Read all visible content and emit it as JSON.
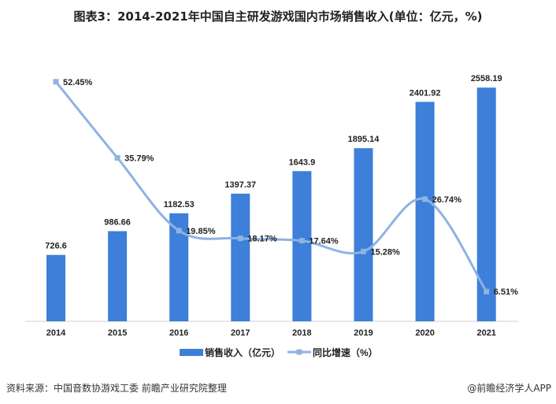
{
  "chart_data": {
    "type": "bar+line",
    "title": "图表3：2014-2021年中国自主研发游戏国内市场销售收入(单位：亿元，%)",
    "categories": [
      "2014",
      "2015",
      "2016",
      "2017",
      "2018",
      "2019",
      "2020",
      "2021"
    ],
    "series": [
      {
        "name": "销售收入（亿元）",
        "type": "bar",
        "axis": "left",
        "values": [
          726.6,
          986.66,
          1182.53,
          1397.37,
          1643.9,
          1895.14,
          2401.92,
          2558.19
        ],
        "labels": [
          "726.6",
          "986.66",
          "1182.53",
          "1397.37",
          "1643.9",
          "1895.14",
          "2401.92",
          "2558.19"
        ],
        "color": "#3d7fd9"
      },
      {
        "name": "同比增速（%）",
        "type": "line",
        "smooth": true,
        "axis": "right",
        "values": [
          52.45,
          35.79,
          19.85,
          18.17,
          17.64,
          15.28,
          26.74,
          6.51
        ],
        "labels": [
          "52.45%",
          "35.79%",
          "19.85%",
          "18.17%",
          "17.64%",
          "15.28%",
          "26.74%",
          "6.51%"
        ],
        "color": "#8db3e2"
      }
    ],
    "ylim": [
      0,
      3000
    ],
    "y2lim": [
      0,
      60
    ],
    "grid": false,
    "legend": "bottom"
  },
  "footer": {
    "source": "资料来源：中国音数协游戏工委 前瞻产业研究院整理",
    "credit": "@前瞻经济学人APP"
  }
}
